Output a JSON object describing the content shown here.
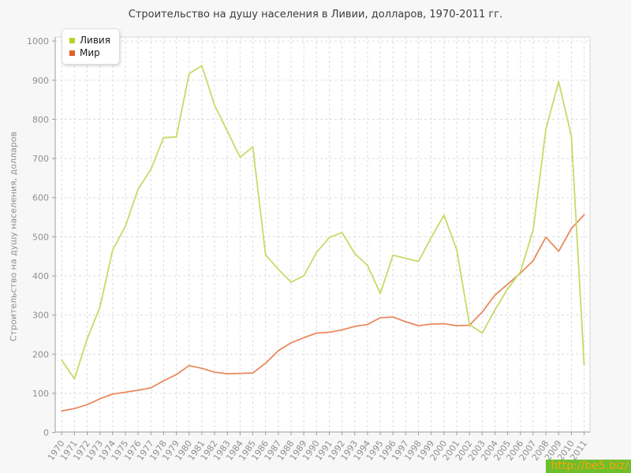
{
  "page": {
    "watermark_text": "http://be5.biz/"
  },
  "chart_data": {
    "type": "line",
    "title": "Строительство на душу населения в Ливии, долларов, 1970-2011 гг.",
    "xlabel": "",
    "ylabel": "Строительство на душу населения, долларов",
    "ylim": [
      0,
      1000
    ],
    "ytick_step": 100,
    "grid": true,
    "grid_style": "dashed",
    "legend_position": "top-left",
    "x": [
      1970,
      1971,
      1972,
      1973,
      1974,
      1975,
      1976,
      1977,
      1978,
      1979,
      1980,
      1981,
      1982,
      1983,
      1984,
      1985,
      1986,
      1987,
      1988,
      1989,
      1990,
      1991,
      1992,
      1993,
      1994,
      1995,
      1996,
      1997,
      1998,
      1999,
      2000,
      2001,
      2002,
      2003,
      2004,
      2005,
      2006,
      2007,
      2008,
      2009,
      2010,
      2011
    ],
    "series": [
      {
        "name": "Ливия",
        "swatch_color": "#b3d325",
        "line_color": "#c5db67",
        "values": [
          185,
          137,
          239,
          320,
          466,
          527,
          622,
          672,
          753,
          755,
          917,
          937,
          836,
          770,
          703,
          730,
          454,
          417,
          384,
          400,
          460,
          498,
          511,
          457,
          427,
          355,
          453,
          445,
          437,
          498,
          555,
          467,
          276,
          254,
          313,
          367,
          410,
          518,
          775,
          896,
          757,
          172
        ]
      },
      {
        "name": "Мир",
        "swatch_color": "#e2622b",
        "line_color": "#e98a5e",
        "values": [
          55,
          61,
          71,
          86,
          98,
          103,
          108,
          114,
          132,
          148,
          171,
          164,
          154,
          150,
          151,
          152,
          177,
          209,
          229,
          242,
          254,
          256,
          262,
          271,
          276,
          293,
          295,
          283,
          273,
          277,
          278,
          273,
          274,
          308,
          351,
          379,
          407,
          439,
          499,
          463,
          521,
          556
        ]
      }
    ],
    "colors": {
      "plot_bg": "#ffffff",
      "plot_border": "#d4d4d4",
      "grid": "#dddddd",
      "axis": "#9c9c9c",
      "tick_label": "#8e8e8e",
      "title": "#3c3c3c",
      "page_bg": "#f7f7f7",
      "watermark_bg": "#6cbf2d",
      "watermark_text": "#ffa300"
    }
  }
}
